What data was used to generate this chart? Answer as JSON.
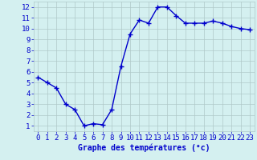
{
  "x": [
    0,
    1,
    2,
    3,
    4,
    5,
    6,
    7,
    8,
    9,
    10,
    11,
    12,
    13,
    14,
    15,
    16,
    17,
    18,
    19,
    20,
    21,
    22,
    23
  ],
  "y": [
    5.5,
    5.0,
    4.5,
    3.0,
    2.5,
    1.0,
    1.2,
    1.1,
    2.5,
    6.5,
    9.5,
    10.8,
    10.5,
    12.0,
    12.0,
    11.2,
    10.5,
    10.5,
    10.5,
    10.7,
    10.5,
    10.2,
    10.0,
    9.9
  ],
  "line_color": "#0000cc",
  "marker": "+",
  "markersize": 4,
  "linewidth": 1.0,
  "markeredgewidth": 1.0,
  "xlabel": "Graphe des températures (°c)",
  "xlim": [
    -0.5,
    23.5
  ],
  "ylim": [
    0.5,
    12.5
  ],
  "yticks": [
    1,
    2,
    3,
    4,
    5,
    6,
    7,
    8,
    9,
    10,
    11,
    12
  ],
  "xticks": [
    0,
    1,
    2,
    3,
    4,
    5,
    6,
    7,
    8,
    9,
    10,
    11,
    12,
    13,
    14,
    15,
    16,
    17,
    18,
    19,
    20,
    21,
    22,
    23
  ],
  "background_color": "#d4f0f0",
  "grid_color": "#b0c8c8",
  "line_blue": "#0000cc",
  "xlabel_fontsize": 7,
  "tick_fontsize": 6.5
}
